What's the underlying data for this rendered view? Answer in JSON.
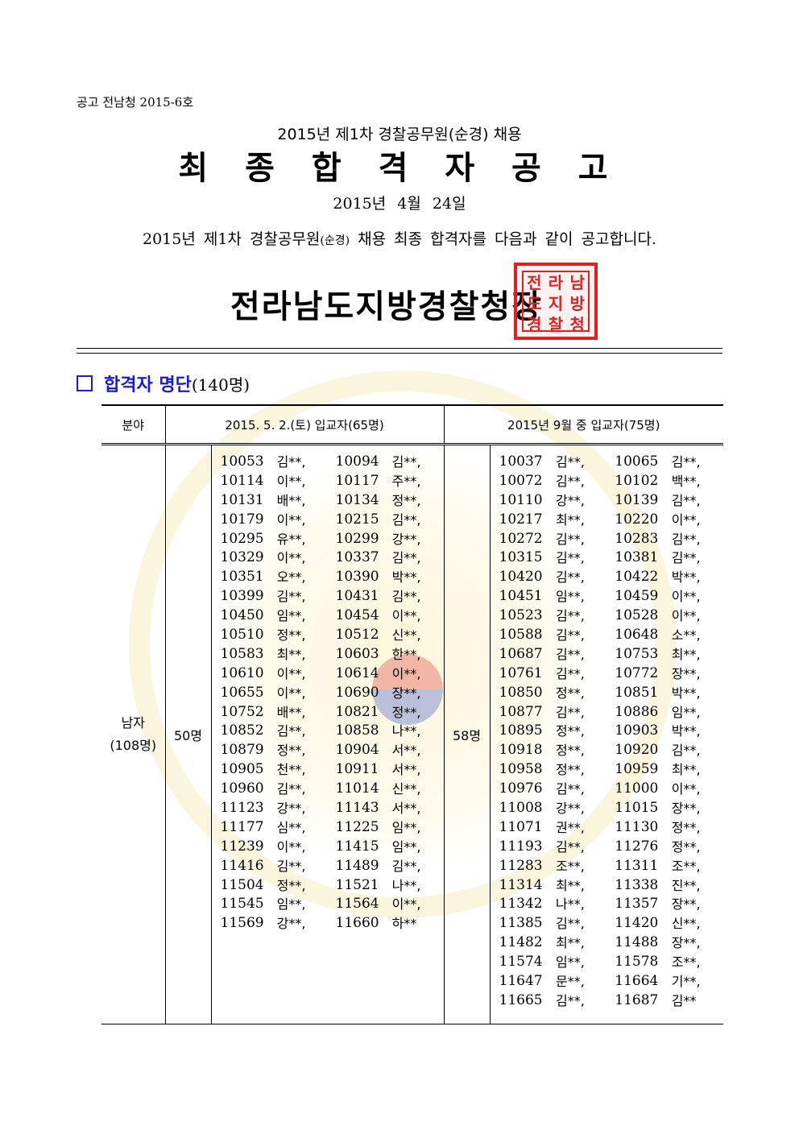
{
  "header": {
    "notice_number": "공고 전남청 2015-6호",
    "subtitle": "2015년 제1차 경찰공무원(순경) 채용",
    "title": "최 종 합 격 자 공 고",
    "date": "2015년 4월 24일",
    "body_pre": "2015년 제1차 경찰공무원",
    "body_small": "(순경)",
    "body_post": " 채용 최종 합격자를 다음과 같이 공고합니다.",
    "issuer": "전라남도지방경찰청장",
    "seal_chars": [
      "전",
      "라",
      "남",
      "도",
      "지",
      "방",
      "경",
      "찰",
      "청"
    ]
  },
  "section": {
    "title": "합격자 명단",
    "count": "(140명)"
  },
  "table": {
    "col_category": "분야",
    "col_may": "2015. 5. 2.(토) 입교자(65명)",
    "col_sep": "2015년 9월 중 입교자(75명)",
    "category": "남자",
    "category_count": "(108명)",
    "may_count": "50명",
    "sep_count": "58명",
    "may_rows": [
      [
        "10053",
        "김**,",
        "10094",
        "김**,"
      ],
      [
        "10114",
        "이**,",
        "10117",
        "주**,"
      ],
      [
        "10131",
        "배**,",
        "10134",
        "정**,"
      ],
      [
        "10179",
        "이**,",
        "10215",
        "김**,"
      ],
      [
        "10295",
        "유**,",
        "10299",
        "강**,"
      ],
      [
        "10329",
        "이**,",
        "10337",
        "김**,"
      ],
      [
        "10351",
        "오**,",
        "10390",
        "박**,"
      ],
      [
        "10399",
        "김**,",
        "10431",
        "김**,"
      ],
      [
        "10450",
        "임**,",
        "10454",
        "이**,"
      ],
      [
        "10510",
        "정**,",
        "10512",
        "신**,"
      ],
      [
        "10583",
        "최**,",
        "10603",
        "한**,"
      ],
      [
        "10610",
        "이**,",
        "10614",
        "이**,"
      ],
      [
        "10655",
        "이**,",
        "10690",
        "장**,"
      ],
      [
        "10752",
        "배**,",
        "10821",
        "정**,"
      ],
      [
        "10852",
        "김**,",
        "10858",
        "나**,"
      ],
      [
        "10879",
        "정**,",
        "10904",
        "서**,"
      ],
      [
        "10905",
        "천**,",
        "10911",
        "서**,"
      ],
      [
        "10960",
        "김**,",
        "11014",
        "신**,"
      ],
      [
        "11123",
        "강**,",
        "11143",
        "서**,"
      ],
      [
        "11177",
        "심**,",
        "11225",
        "임**,"
      ],
      [
        "11239",
        "이**,",
        "11415",
        "임**,"
      ],
      [
        "11416",
        "김**,",
        "11489",
        "김**,"
      ],
      [
        "11504",
        "정**,",
        "11521",
        "나**,"
      ],
      [
        "11545",
        "임**,",
        "11564",
        "이**,"
      ],
      [
        "11569",
        "강**,",
        "11660",
        "하**"
      ]
    ],
    "sep_rows": [
      [
        "10037",
        "김**,",
        "10065",
        "김**,"
      ],
      [
        "10072",
        "김**,",
        "10102",
        "백**,"
      ],
      [
        "10110",
        "강**,",
        "10139",
        "김**,"
      ],
      [
        "10217",
        "최**,",
        "10220",
        "이**,"
      ],
      [
        "10272",
        "김**,",
        "10283",
        "김**,"
      ],
      [
        "10315",
        "김**,",
        "10381",
        "김**,"
      ],
      [
        "10420",
        "김**,",
        "10422",
        "박**,"
      ],
      [
        "10451",
        "임**,",
        "10459",
        "이**,"
      ],
      [
        "10523",
        "김**,",
        "10528",
        "이**,"
      ],
      [
        "10588",
        "김**,",
        "10648",
        "소**,"
      ],
      [
        "10687",
        "김**,",
        "10753",
        "최**,"
      ],
      [
        "10761",
        "김**,",
        "10772",
        "장**,"
      ],
      [
        "10850",
        "정**,",
        "10851",
        "박**,"
      ],
      [
        "10877",
        "김**,",
        "10886",
        "임**,"
      ],
      [
        "10895",
        "정**,",
        "10903",
        "박**,"
      ],
      [
        "10918",
        "정**,",
        "10920",
        "김**,"
      ],
      [
        "10958",
        "정**,",
        "10959",
        "최**,"
      ],
      [
        "10976",
        "김**,",
        "11000",
        "이**,"
      ],
      [
        "11008",
        "강**,",
        "11015",
        "장**,"
      ],
      [
        "11071",
        "권**,",
        "11130",
        "정**,"
      ],
      [
        "11193",
        "김**,",
        "11276",
        "정**,"
      ],
      [
        "11283",
        "조**,",
        "11311",
        "조**,"
      ],
      [
        "11314",
        "최**,",
        "11338",
        "진**,"
      ],
      [
        "11342",
        "나**,",
        "11357",
        "장**,"
      ],
      [
        "11385",
        "김**,",
        "11420",
        "신**,"
      ],
      [
        "11482",
        "최**,",
        "11488",
        "장**,"
      ],
      [
        "11574",
        "임**,",
        "11578",
        "조**,"
      ],
      [
        "11647",
        "문**,",
        "11664",
        "기**,"
      ],
      [
        "11665",
        "김**,",
        "11687",
        "김**"
      ]
    ]
  },
  "colors": {
    "accent_blue": "#1a1adb",
    "seal_red": "#dd2222",
    "watermark_gold": "#f0c846"
  }
}
